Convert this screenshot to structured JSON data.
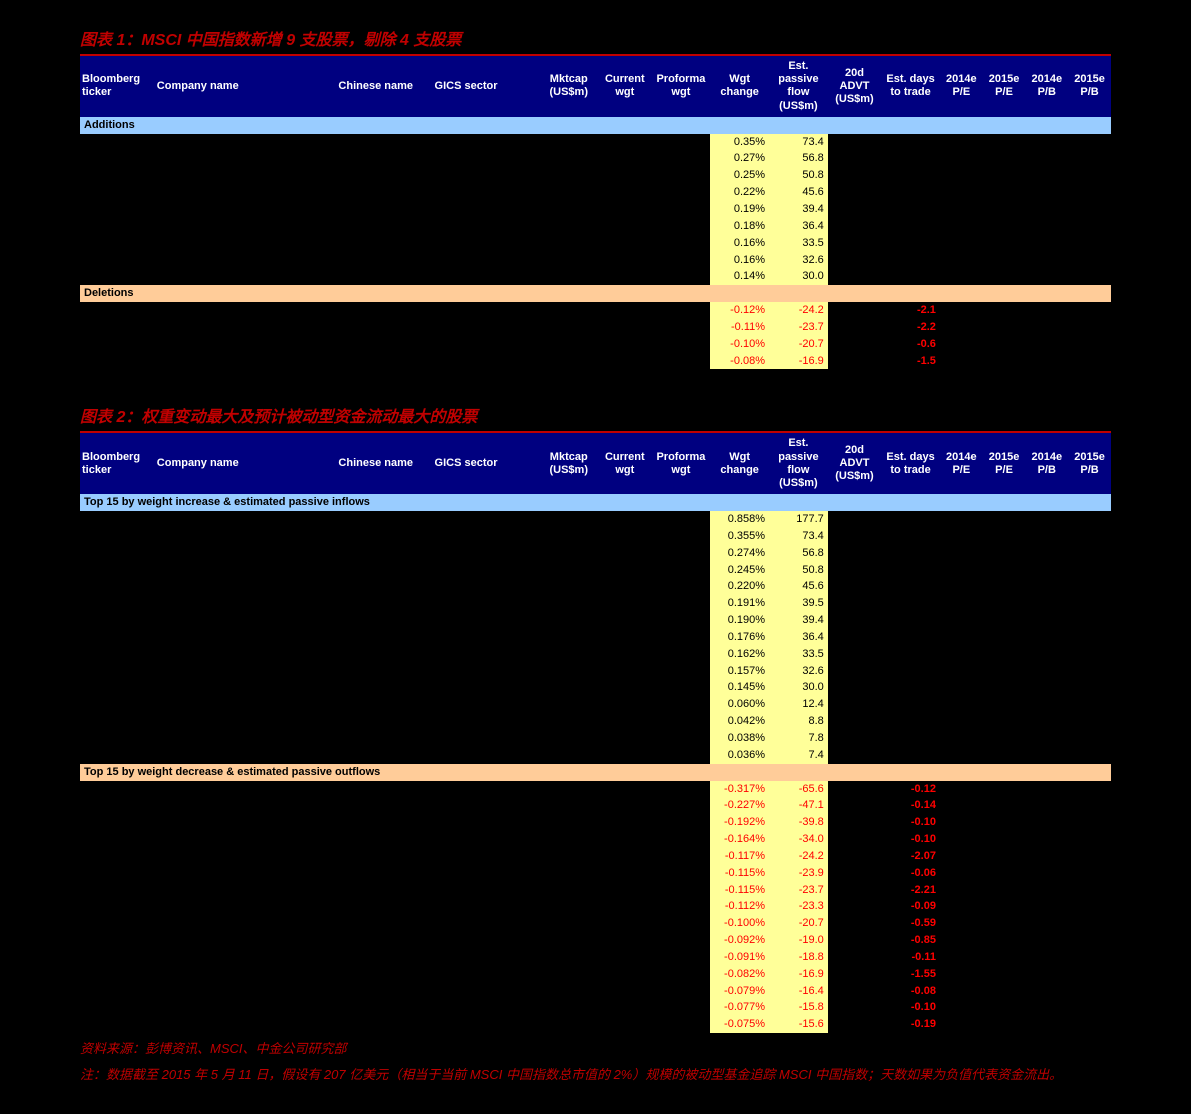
{
  "chart1": {
    "title": "图表 1：MSCI 中国指数新增 9 支股票，剔除 4 支股票",
    "headers": [
      "Bloomberg ticker",
      "Company name",
      "Chinese name",
      "GICS sector",
      "Mktcap (US$m)",
      "Current wgt",
      "Proforma wgt",
      "Wgt change",
      "Est. passive flow (US$m)",
      "20d ADVT (US$m)",
      "Est. days to trade",
      "2014e P/E",
      "2015e P/E",
      "2014e P/B",
      "2015e P/B"
    ],
    "section_additions": "Additions",
    "additions": [
      {
        "wgt": "0.35%",
        "flow": "73.4"
      },
      {
        "wgt": "0.27%",
        "flow": "56.8"
      },
      {
        "wgt": "0.25%",
        "flow": "50.8"
      },
      {
        "wgt": "0.22%",
        "flow": "45.6"
      },
      {
        "wgt": "0.19%",
        "flow": "39.4"
      },
      {
        "wgt": "0.18%",
        "flow": "36.4"
      },
      {
        "wgt": "0.16%",
        "flow": "33.5"
      },
      {
        "wgt": "0.16%",
        "flow": "32.6"
      },
      {
        "wgt": "0.14%",
        "flow": "30.0"
      }
    ],
    "section_deletions": "Deletions",
    "deletions": [
      {
        "wgt": "-0.12%",
        "flow": "-24.2",
        "days": "-2.1"
      },
      {
        "wgt": "-0.11%",
        "flow": "-23.7",
        "days": "-2.2"
      },
      {
        "wgt": "-0.10%",
        "flow": "-20.7",
        "days": "-0.6"
      },
      {
        "wgt": "-0.08%",
        "flow": "-16.9",
        "days": "-1.5"
      }
    ]
  },
  "chart2": {
    "title": "图表 2：权重变动最大及预计被动型资金流动最大的股票",
    "headers": [
      "Bloomberg ticker",
      "Company name",
      "Chinese name",
      "GICS sector",
      "Mktcap (US$m)",
      "Current wgt",
      "Proforma wgt",
      "Wgt change",
      "Est. passive flow (US$m)",
      "20d ADVT (US$m)",
      "Est. days to trade",
      "2014e P/E",
      "2015e P/E",
      "2014e P/B",
      "2015e P/B"
    ],
    "section_inflows": "Top 15 by weight increase & estimated passive inflows",
    "inflows": [
      {
        "wgt": "0.858%",
        "flow": "177.7"
      },
      {
        "wgt": "0.355%",
        "flow": "73.4"
      },
      {
        "wgt": "0.274%",
        "flow": "56.8"
      },
      {
        "wgt": "0.245%",
        "flow": "50.8"
      },
      {
        "wgt": "0.220%",
        "flow": "45.6"
      },
      {
        "wgt": "0.191%",
        "flow": "39.5"
      },
      {
        "wgt": "0.190%",
        "flow": "39.4"
      },
      {
        "wgt": "0.176%",
        "flow": "36.4"
      },
      {
        "wgt": "0.162%",
        "flow": "33.5"
      },
      {
        "wgt": "0.157%",
        "flow": "32.6"
      },
      {
        "wgt": "0.145%",
        "flow": "30.0"
      },
      {
        "wgt": "0.060%",
        "flow": "12.4"
      },
      {
        "wgt": "0.042%",
        "flow": "8.8"
      },
      {
        "wgt": "0.038%",
        "flow": "7.8"
      },
      {
        "wgt": "0.036%",
        "flow": "7.4"
      }
    ],
    "section_outflows": "Top 15 by weight decrease & estimated passive outflows",
    "outflows": [
      {
        "wgt": "-0.317%",
        "flow": "-65.6",
        "days": "-0.12"
      },
      {
        "wgt": "-0.227%",
        "flow": "-47.1",
        "days": "-0.14"
      },
      {
        "wgt": "-0.192%",
        "flow": "-39.8",
        "days": "-0.10"
      },
      {
        "wgt": "-0.164%",
        "flow": "-34.0",
        "days": "-0.10"
      },
      {
        "wgt": "-0.117%",
        "flow": "-24.2",
        "days": "-2.07"
      },
      {
        "wgt": "-0.115%",
        "flow": "-23.9",
        "days": "-0.06"
      },
      {
        "wgt": "-0.115%",
        "flow": "-23.7",
        "days": "-2.21"
      },
      {
        "wgt": "-0.112%",
        "flow": "-23.3",
        "days": "-0.09"
      },
      {
        "wgt": "-0.100%",
        "flow": "-20.7",
        "days": "-0.59"
      },
      {
        "wgt": "-0.092%",
        "flow": "-19.0",
        "days": "-0.85"
      },
      {
        "wgt": "-0.091%",
        "flow": "-18.8",
        "days": "-0.11"
      },
      {
        "wgt": "-0.082%",
        "flow": "-16.9",
        "days": "-1.55"
      },
      {
        "wgt": "-0.079%",
        "flow": "-16.4",
        "days": "-0.08"
      },
      {
        "wgt": "-0.077%",
        "flow": "-15.8",
        "days": "-0.10"
      },
      {
        "wgt": "-0.075%",
        "flow": "-15.6",
        "days": "-0.19"
      }
    ]
  },
  "footnotes": {
    "source": "资料来源：彭博资讯、MSCI、中金公司研究部",
    "note": "注：数据截至 2015 年 5 月 11 日，假设有 207 亿美元（相当于当前 MSCI 中国指数总市值的 2%）规模的被动型基金追踪 MSCI 中国指数；天数如果为负值代表资金流出。"
  },
  "style": {
    "title_color": "#c00000",
    "header_bg": "#000080",
    "additions_bg": "#99ccff",
    "deletions_bg": "#ffcc99",
    "highlight_bg": "#ffff99",
    "negative_color": "#ff0000",
    "background": "#000000"
  }
}
